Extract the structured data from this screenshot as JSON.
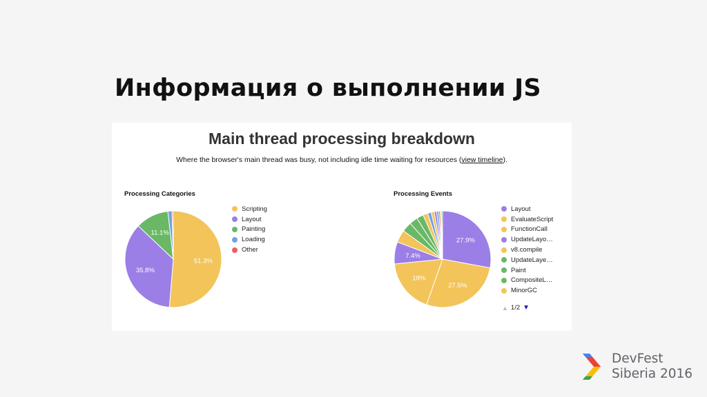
{
  "slide": {
    "title": "Информация о выполнении JS",
    "brand_line1": "DevFest",
    "brand_line2": "Siberia 2016",
    "brand_colors": [
      "#ea4335",
      "#4285f4",
      "#fbbc05",
      "#34a853"
    ]
  },
  "panel": {
    "title": "Main thread processing breakdown",
    "subtitle_before": "Where the browser's main thread was busy, not including idle time waiting for resources (",
    "subtitle_link": "view timeline",
    "subtitle_after": ")."
  },
  "chart_data": [
    {
      "type": "pie",
      "title": "Processing Categories",
      "legend_position": "right",
      "slices": [
        {
          "label": "Scripting",
          "value": 51.3,
          "display": "51.3%",
          "color": "#f2c45a"
        },
        {
          "label": "Layout",
          "value": 35.8,
          "display": "35.8%",
          "color": "#9b7ee6"
        },
        {
          "label": "Painting",
          "value": 11.1,
          "display": "11.1%",
          "color": "#6ab866"
        },
        {
          "label": "Loading",
          "value": 1.4,
          "display": "",
          "color": "#6fa3e0"
        },
        {
          "label": "Other",
          "value": 0.4,
          "display": "",
          "color": "#e8625a"
        }
      ]
    },
    {
      "type": "pie",
      "title": "Processing Events",
      "legend_position": "right",
      "legend_page": "1/2",
      "legend": [
        {
          "label": "Layout",
          "color": "#9b7ee6"
        },
        {
          "label": "EvaluateScript",
          "color": "#f2c45a"
        },
        {
          "label": "FunctionCall",
          "color": "#f2c45a"
        },
        {
          "label": "UpdateLayo…",
          "color": "#9b7ee6"
        },
        {
          "label": "v8.compile",
          "color": "#f2c45a"
        },
        {
          "label": "UpdateLaye…",
          "color": "#6ab866"
        },
        {
          "label": "Paint",
          "color": "#6ab866"
        },
        {
          "label": "CompositeL…",
          "color": "#6ab866"
        },
        {
          "label": "MinorGC",
          "color": "#f2c45a"
        }
      ],
      "slices": [
        {
          "label": "Layout",
          "value": 27.9,
          "display": "27.9%",
          "color": "#9b7ee6"
        },
        {
          "label": "EvaluateScript",
          "value": 27.5,
          "display": "27.5%",
          "color": "#f2c45a"
        },
        {
          "label": "FunctionCall",
          "value": 18,
          "display": "18%",
          "color": "#f2c45a"
        },
        {
          "label": "UpdateLayo…",
          "value": 7.4,
          "display": "7.4%",
          "color": "#9b7ee6"
        },
        {
          "label": "v8.compile",
          "value": 4.2,
          "display": "",
          "color": "#f2c45a"
        },
        {
          "label": "UpdateLaye…",
          "value": 3.3,
          "display": "",
          "color": "#6ab866"
        },
        {
          "label": "Paint",
          "value": 2.8,
          "display": "",
          "color": "#6ab866"
        },
        {
          "label": "CompositeL…",
          "value": 2.3,
          "display": "",
          "color": "#6ab866"
        },
        {
          "label": "MinorGC",
          "value": 1.6,
          "display": "",
          "color": "#f2c45a"
        },
        {
          "label": "",
          "value": 1.2,
          "display": "",
          "color": "#6fa3e0"
        },
        {
          "label": "",
          "value": 1.0,
          "display": "",
          "color": "#f2c45a"
        },
        {
          "label": "",
          "value": 0.8,
          "display": "",
          "color": "#9b7ee6"
        },
        {
          "label": "",
          "value": 0.7,
          "display": "",
          "color": "#6fa3e0"
        },
        {
          "label": "",
          "value": 0.5,
          "display": "",
          "color": "#e8625a"
        },
        {
          "label": "",
          "value": 0.4,
          "display": "",
          "color": "#f2c45a"
        },
        {
          "label": "",
          "value": 0.4,
          "display": "",
          "color": "#6ab866"
        }
      ]
    }
  ]
}
